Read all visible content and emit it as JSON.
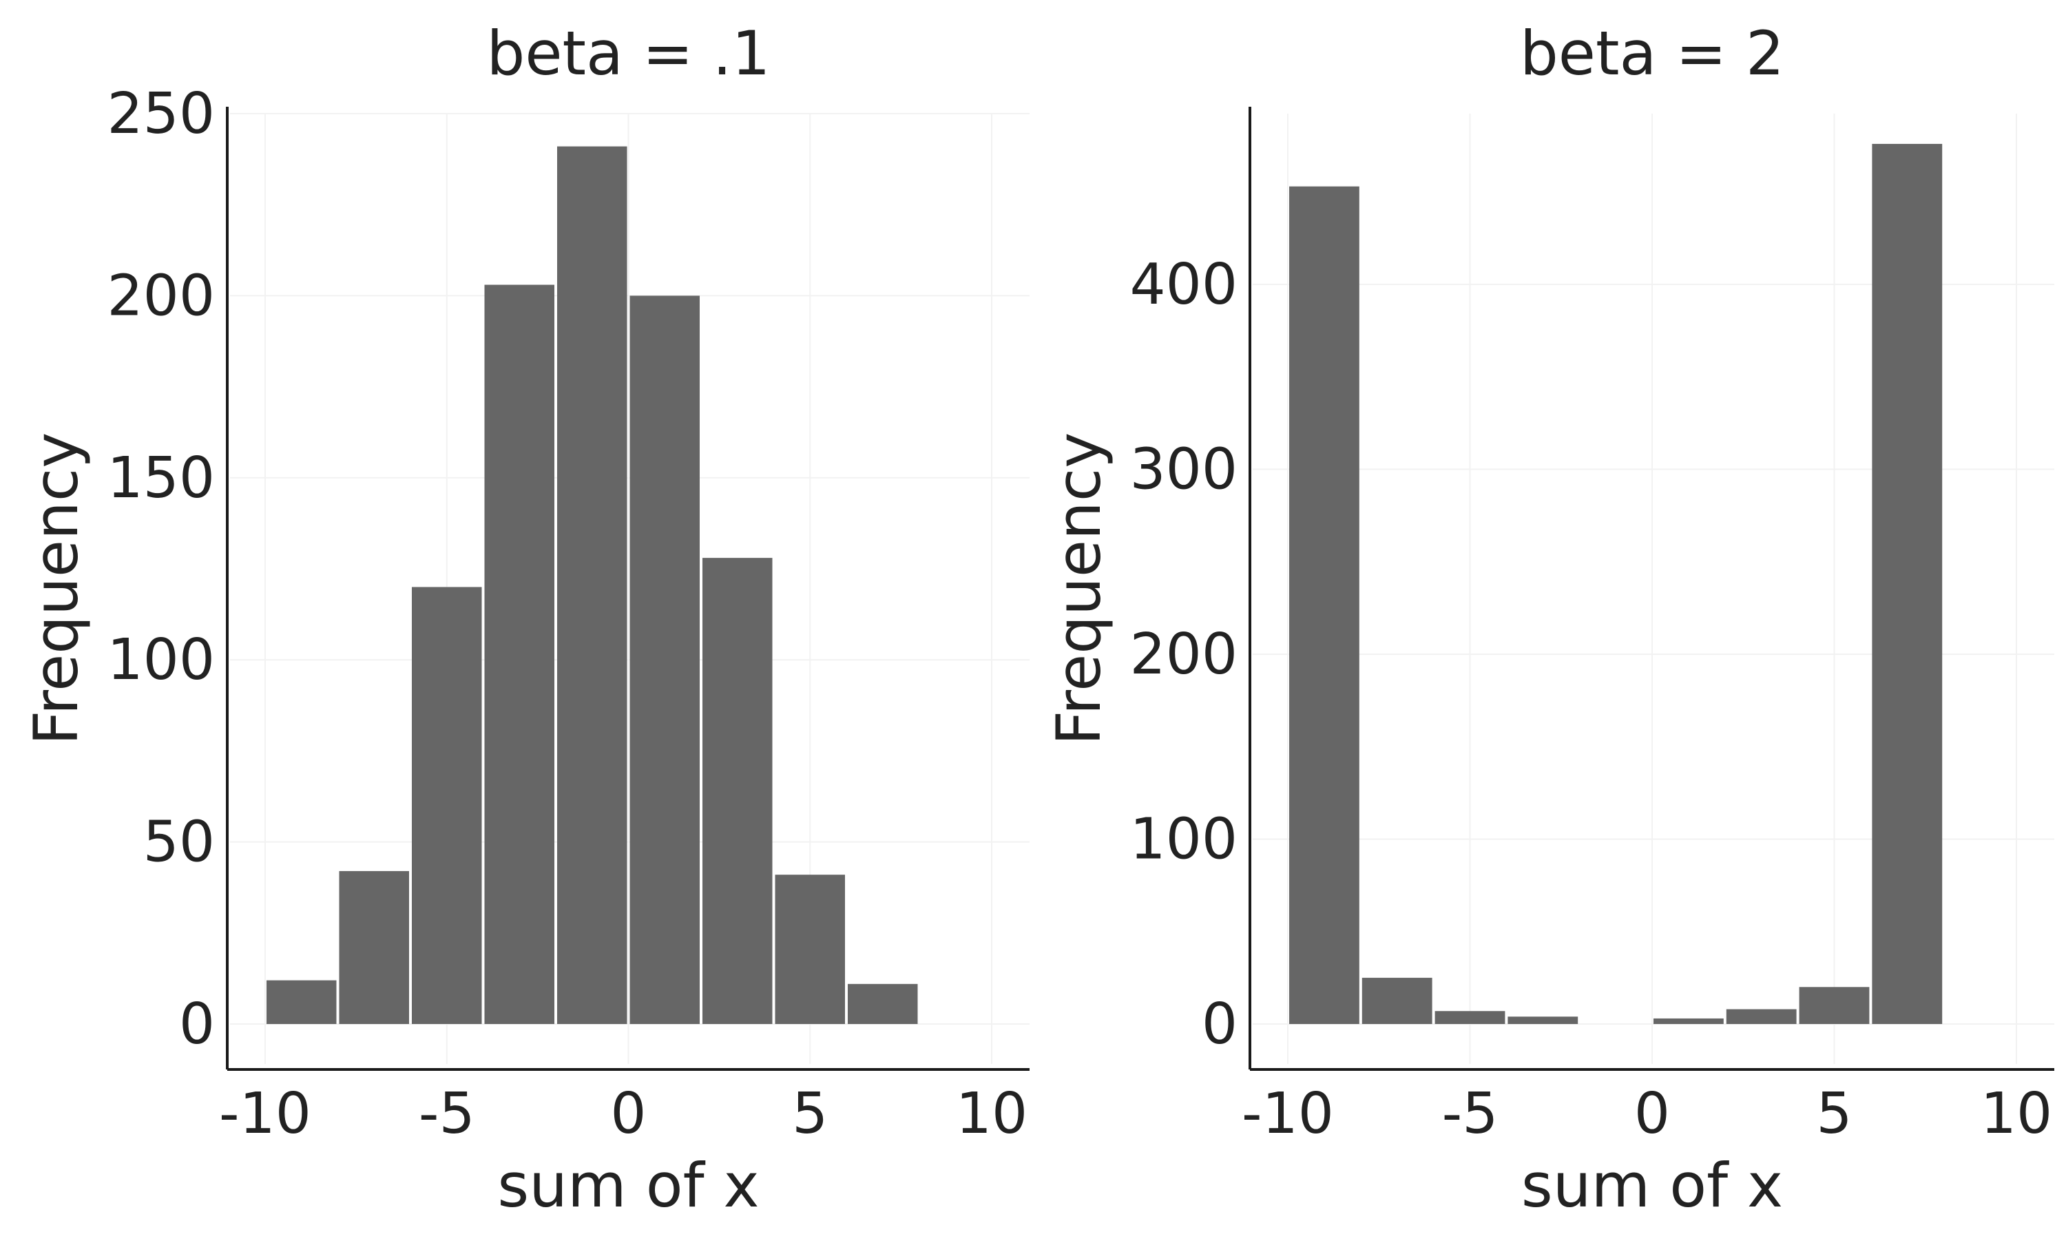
{
  "chart_data": [
    {
      "type": "bar",
      "title": "beta = .1",
      "xlabel": "sum of x",
      "ylabel": "Frequency",
      "xlim": [
        -10,
        10
      ],
      "ylim": [
        0,
        250
      ],
      "xticks": [
        -10,
        -5,
        0,
        5,
        10
      ],
      "yticks": [
        0,
        50,
        100,
        150,
        200,
        250
      ],
      "grid": true,
      "bar_color": "#666666",
      "bins": [
        {
          "x0": -10,
          "x1": -8,
          "value": 12
        },
        {
          "x0": -8,
          "x1": -6,
          "value": 42
        },
        {
          "x0": -6,
          "x1": -4,
          "value": 120
        },
        {
          "x0": -4,
          "x1": -2,
          "value": 203
        },
        {
          "x0": -2,
          "x1": 0,
          "value": 241
        },
        {
          "x0": 0,
          "x1": 2,
          "value": 200
        },
        {
          "x0": 2,
          "x1": 4,
          "value": 128
        },
        {
          "x0": 4,
          "x1": 6,
          "value": 41
        },
        {
          "x0": 6,
          "x1": 8,
          "value": 11
        },
        {
          "x0": 8,
          "x1": 10,
          "value": 0
        }
      ]
    },
    {
      "type": "bar",
      "title": "beta = 2",
      "xlabel": "sum of x",
      "ylabel": "Frequency",
      "xlim": [
        -10,
        10
      ],
      "ylim": [
        0,
        475
      ],
      "xticks": [
        -10,
        -5,
        0,
        5,
        10
      ],
      "yticks": [
        0,
        100,
        200,
        300,
        400
      ],
      "grid": true,
      "bar_color": "#666666",
      "bins": [
        {
          "x0": -10,
          "x1": -8,
          "value": 453
        },
        {
          "x0": -8,
          "x1": -6,
          "value": 25
        },
        {
          "x0": -6,
          "x1": -4,
          "value": 7
        },
        {
          "x0": -4,
          "x1": -2,
          "value": 4
        },
        {
          "x0": -2,
          "x1": 0,
          "value": 0
        },
        {
          "x0": 0,
          "x1": 2,
          "value": 3
        },
        {
          "x0": 2,
          "x1": 4,
          "value": 8
        },
        {
          "x0": 4,
          "x1": 6,
          "value": 20
        },
        {
          "x0": 6,
          "x1": 8,
          "value": 476
        },
        {
          "x0": 8,
          "x1": 10,
          "value": 0
        }
      ]
    }
  ]
}
